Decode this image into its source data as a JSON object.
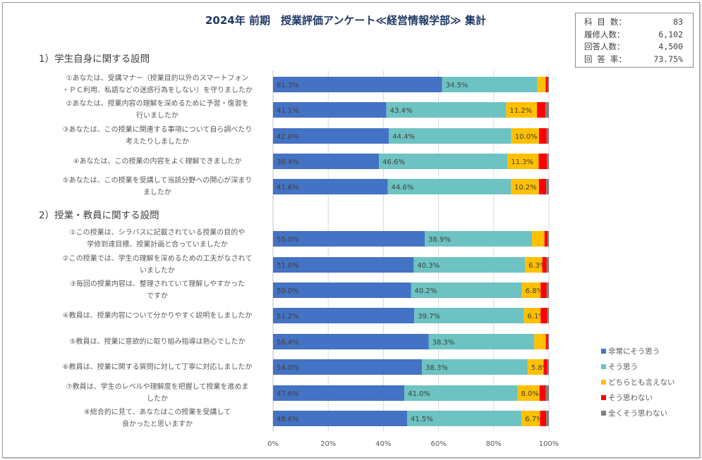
{
  "title": "2024年 前期　授業評価アンケート≪経営情報学部≫ 集計",
  "stats": [
    {
      "label": "科 目 数：",
      "value": "83"
    },
    {
      "label": "履修人数：",
      "value": "6,102"
    },
    {
      "label": "回答人数：",
      "value": "4,500"
    },
    {
      "label": "回 答 率：",
      "value": "73.75%"
    }
  ],
  "colors": {
    "s0": "#4472c4",
    "s1": "#6cc3c1",
    "s2": "#ffc000",
    "s3": "#ff0000",
    "s4": "#808080"
  },
  "chart_data": {
    "type": "bar",
    "orientation": "horizontal-stacked-100",
    "xlim": [
      0,
      100
    ],
    "xticks": [
      "0%",
      "20%",
      "40%",
      "60%",
      "80%",
      "100%"
    ],
    "grid": true,
    "legend_position": "right",
    "series_names": [
      "非常にそう思う",
      "そう思う",
      "どちらとも言えない",
      "そう思わない",
      "全くそう思わない"
    ],
    "sections": [
      {
        "heading": "1）学生自身に関する設問",
        "questions": [
          {
            "label": [
              "①あなたは、受講マナー（授業目的以外のスマートフォン",
              "・ＰＣ利用、私語などの迷惑行為をしない）を守りましたか"
            ],
            "values": [
              61.3,
              34.5,
              3.0,
              0.8,
              0.4
            ]
          },
          {
            "label": [
              "②あなたは、授業内容の理解を深めるために予習・復習を",
              "行いましたか"
            ],
            "values": [
              41.1,
              43.4,
              11.2,
              3.0,
              1.3
            ]
          },
          {
            "label": [
              "③あなたは、この授業に関連する事項について自ら調べたり",
              "考えたりしましたか"
            ],
            "values": [
              42.0,
              44.4,
              10.0,
              2.8,
              0.8
            ]
          },
          {
            "label": [
              "④あなたは、この授業の内容をよく理解できましたか"
            ],
            "values": [
              38.4,
              46.6,
              11.3,
              3.0,
              0.7
            ]
          },
          {
            "label": [
              "⑤あなたは、この授業を受講して当該分野への関心が深まり",
              "ましたか"
            ],
            "values": [
              41.6,
              44.6,
              10.2,
              2.6,
              1.0
            ]
          }
        ]
      },
      {
        "heading": "2）授業・教員に関する設問",
        "questions": [
          {
            "label": [
              "①この授業は、シラバスに記載されている授業の目的や",
              "学修到達目標、授業計画と合っていましたか"
            ],
            "values": [
              55.0,
              38.9,
              4.5,
              1.1,
              0.5
            ]
          },
          {
            "label": [
              "②この授業では、学生の理解を深めるための工夫がなされて",
              "いましたか"
            ],
            "values": [
              51.0,
              40.3,
              6.3,
              1.6,
              0.8
            ]
          },
          {
            "label": [
              "③毎回の授業内容は、整理されていて理解しやすかった",
              "ですか"
            ],
            "values": [
              50.0,
              40.2,
              6.8,
              2.2,
              0.8
            ]
          },
          {
            "label": [
              "④教員は、授業内容について分かりやすく説明をしましたか"
            ],
            "values": [
              51.2,
              39.7,
              6.1,
              2.4,
              0.6
            ]
          },
          {
            "label": [
              "⑤教員は、授業に意欲的に取り組み指導は熱心でしたか"
            ],
            "values": [
              56.4,
              38.3,
              4.2,
              0.8,
              0.3
            ]
          },
          {
            "label": [
              "⑥教員は、授業に関する質問に対して丁寧に対応しましたか"
            ],
            "values": [
              54.0,
              38.3,
              5.8,
              1.3,
              0.6
            ]
          },
          {
            "label": [
              "⑦教員は、学生のレベルや理解度を把握して授業を進めま",
              "したか"
            ],
            "values": [
              47.6,
              41.0,
              8.0,
              2.3,
              1.1
            ]
          },
          {
            "label": [
              "⑧総合的に見て、あなたはこの授業を受講して",
              "良かったと思いますか"
            ],
            "values": [
              48.6,
              41.5,
              6.7,
              2.2,
              1.0
            ]
          }
        ]
      }
    ]
  }
}
